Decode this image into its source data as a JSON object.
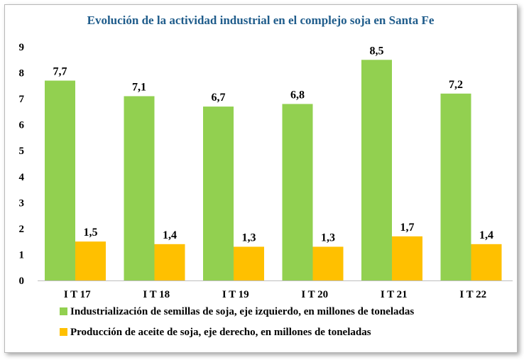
{
  "chart_data": {
    "type": "bar",
    "title": "Evolución de la actividad industrial en el complejo soja en Santa Fe",
    "categories": [
      "I T 17",
      "I T 18",
      "I T 19",
      "I T 20",
      "I T 21",
      "I T 22"
    ],
    "series": [
      {
        "name": "Industrialización de semillas de soja, eje izquierdo, en millones de toneladas",
        "values": [
          7.7,
          7.1,
          6.7,
          6.8,
          8.5,
          7.2
        ],
        "labels": [
          "7,7",
          "7,1",
          "6,7",
          "6,8",
          "8,5",
          "7,2"
        ],
        "color": "#92d050"
      },
      {
        "name": "Producción de aceite de soja, eje derecho, en millones de toneladas",
        "values": [
          1.5,
          1.4,
          1.3,
          1.3,
          1.7,
          1.4
        ],
        "labels": [
          "1,5",
          "1,4",
          "1,3",
          "1,3",
          "1,7",
          "1,4"
        ],
        "color": "#ffc000"
      }
    ],
    "yticks": [
      "0",
      "1",
      "2",
      "3",
      "4",
      "5",
      "6",
      "7",
      "8",
      "9"
    ],
    "ylim": [
      0,
      9
    ],
    "xlabel": "",
    "ylabel": "",
    "grid": false,
    "legend_position": "bottom",
    "title_color": "#1f5c8b"
  }
}
